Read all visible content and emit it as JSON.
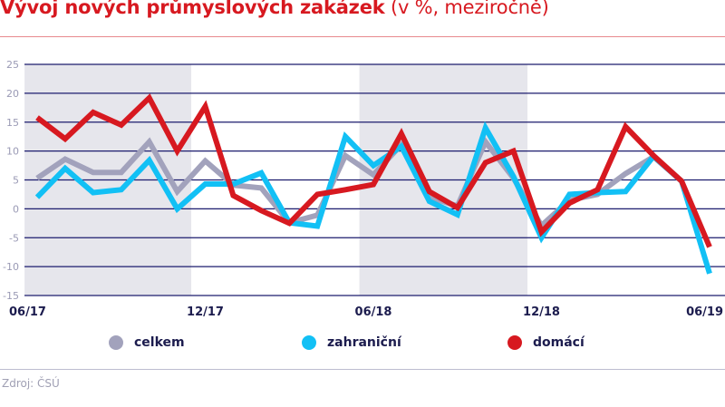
{
  "header": {
    "title_bold": "Vývoj nových průmyslových zakázek",
    "title_suffix": " (v %, meziročně)"
  },
  "footer": {
    "source": "Zdroj: ČSÚ"
  },
  "colors": {
    "title": "#d71920",
    "shade": "#e6e6ec",
    "grid": "#1c1c6e",
    "celkem": "#a2a2bc",
    "zahranicni": "#12c0f5",
    "domaci": "#d71920"
  },
  "chart_data": {
    "type": "line",
    "title": "Vývoj nových průmyslových zakázek (v %, meziročně)",
    "xlabel": "",
    "ylabel": "",
    "ylim": [
      -15,
      25
    ],
    "yticks": [
      25,
      20,
      15,
      10,
      5,
      0,
      -5,
      -10,
      -15
    ],
    "grid": true,
    "legend_position": "bottom",
    "x": [
      "06/17",
      "07/17",
      "08/17",
      "09/17",
      "10/17",
      "11/17",
      "12/17",
      "01/18",
      "02/18",
      "03/18",
      "04/18",
      "05/18",
      "06/18",
      "07/18",
      "08/18",
      "09/18",
      "10/18",
      "11/18",
      "12/18",
      "01/19",
      "02/19",
      "03/19",
      "04/19",
      "05/19",
      "06/19"
    ],
    "xtick_labels": [
      {
        "label": "06/17",
        "index": 0
      },
      {
        "label": "12/17",
        "index": 6
      },
      {
        "label": "06/18",
        "index": 12
      },
      {
        "label": "12/18",
        "index": 18
      },
      {
        "label": "06/19",
        "index": 24
      }
    ],
    "shaded_ranges": [
      {
        "from_index": -0.45,
        "to_index": 5.5
      },
      {
        "from_index": 11.5,
        "to_index": 17.5
      }
    ],
    "series": [
      {
        "name": "celkem",
        "color": "#a2a2bc",
        "values": [
          5.3,
          8.6,
          6.3,
          6.3,
          11.6,
          3.0,
          8.3,
          4.1,
          3.6,
          -2.4,
          -1.1,
          9.2,
          5.9,
          11.1,
          2.0,
          0.5,
          11.6,
          5.3,
          -2.9,
          1.5,
          2.5,
          6.1,
          9.0,
          4.8,
          null
        ]
      },
      {
        "name": "zahraniční",
        "color": "#12c0f5",
        "values": [
          2.0,
          7.0,
          2.8,
          3.3,
          8.4,
          0.0,
          4.3,
          4.3,
          6.2,
          -2.4,
          -3.0,
          12.5,
          7.5,
          10.8,
          1.3,
          -1.0,
          14.0,
          5.6,
          -5.0,
          2.5,
          2.8,
          3.0,
          9.1,
          4.8,
          -11.2
        ]
      },
      {
        "name": "domácí",
        "color": "#d71920",
        "values": [
          15.8,
          12.1,
          16.7,
          14.5,
          19.2,
          10.0,
          17.7,
          2.3,
          -0.3,
          -2.5,
          2.5,
          3.3,
          4.2,
          13.0,
          3.0,
          0.2,
          8.0,
          10.0,
          -4.0,
          1.0,
          3.3,
          14.2,
          9.2,
          4.8,
          -6.6
        ]
      }
    ]
  },
  "legend": [
    {
      "label": "celkem",
      "color": "#a2a2bc"
    },
    {
      "label": "zahraniční",
      "color": "#12c0f5"
    },
    {
      "label": "domácí",
      "color": "#d71920"
    }
  ]
}
